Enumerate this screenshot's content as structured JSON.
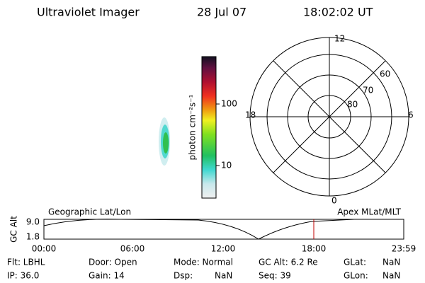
{
  "header": {
    "instrument": "Ultraviolet Imager",
    "date": "28 Jul 07",
    "time": "18:02:02 UT"
  },
  "colorbar": {
    "label": "photon cm⁻²s⁻¹",
    "ticks": [
      "100",
      "10"
    ]
  },
  "polar": {
    "mlt_labels": [
      "12",
      "18",
      "6",
      "0"
    ],
    "lat_labels": [
      "60",
      "70",
      "80"
    ]
  },
  "orbit": {
    "left_title": "Geographic Lat/Lon",
    "right_title": "Apex MLat/MLT",
    "axis_label": "GC Alt",
    "y_ticks": [
      "9.0",
      "1.8"
    ],
    "x_ticks": [
      "00:00",
      "06:00",
      "12:00",
      "18:00",
      "23:59"
    ]
  },
  "status": {
    "rows": [
      [
        "Flt: LBHL",
        "Door: Open",
        "Mode: Normal",
        "GC Alt: 6.2 Re",
        "GLat:",
        "NaN"
      ],
      [
        "IP: 36.0",
        "Gain: 14",
        "Dsp:",
        "NaN",
        "Seq: 39",
        "GLon:",
        "NaN"
      ]
    ]
  }
}
